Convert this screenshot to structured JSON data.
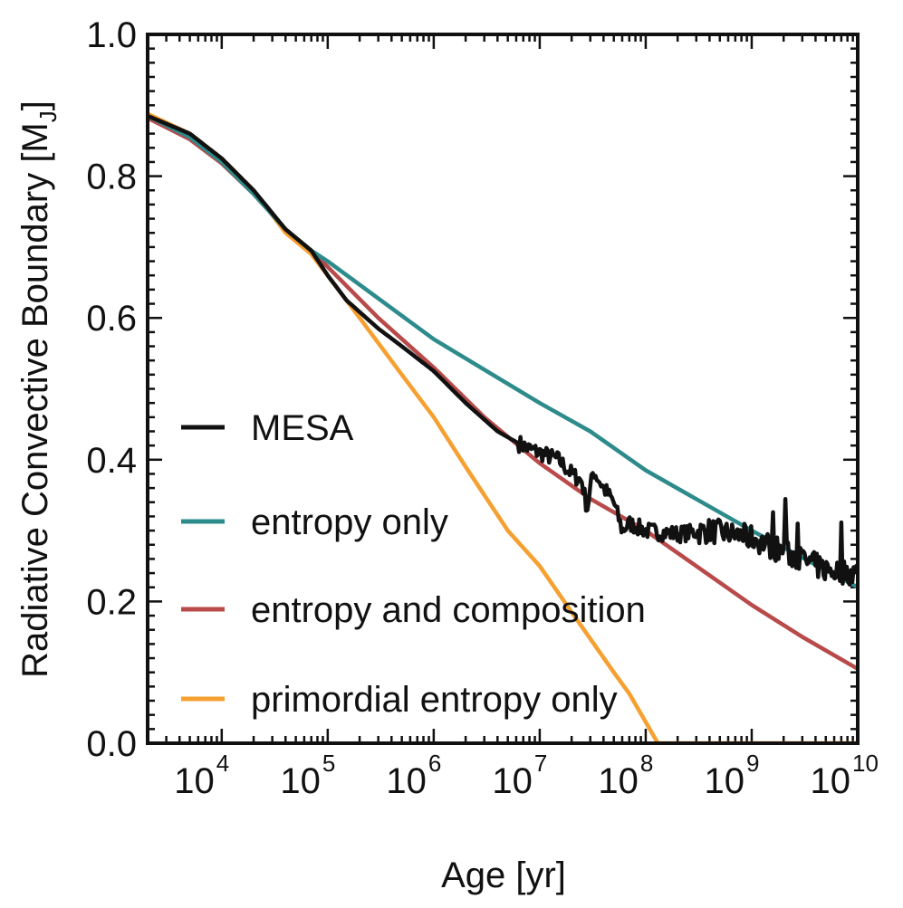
{
  "chart_data": {
    "type": "line",
    "title": "",
    "xlabel": "Age [yr]",
    "ylabel": "Radiative Convective Boundary [M",
    "ylabel_sub": "J",
    "ylabel_close": "]",
    "x_scale": "log",
    "xlim": [
      2000,
      10000000000
    ],
    "ylim": [
      0.0,
      1.0
    ],
    "x_ticks": [
      {
        "value": 10000,
        "base": "10",
        "exp": "4"
      },
      {
        "value": 100000,
        "base": "10",
        "exp": "5"
      },
      {
        "value": 1000000,
        "base": "10",
        "exp": "6"
      },
      {
        "value": 10000000,
        "base": "10",
        "exp": "7"
      },
      {
        "value": 100000000,
        "base": "10",
        "exp": "8"
      },
      {
        "value": 1000000000,
        "base": "10",
        "exp": "9"
      },
      {
        "value": 10000000000,
        "base": "10",
        "exp": "10"
      }
    ],
    "y_ticks": [
      {
        "value": 0.0,
        "label": "0.0"
      },
      {
        "value": 0.2,
        "label": "0.2"
      },
      {
        "value": 0.4,
        "label": "0.4"
      },
      {
        "value": 0.6,
        "label": "0.6"
      },
      {
        "value": 0.8,
        "label": "0.8"
      },
      {
        "value": 1.0,
        "label": "1.0"
      }
    ],
    "grid": false,
    "legend_position": "lower-left",
    "series": [
      {
        "name": "MESA",
        "color": "#111111",
        "noisy": true,
        "x": [
          2000,
          5000,
          10000,
          20000,
          40000,
          70000,
          100000,
          150000,
          300000,
          500000,
          1000000,
          2000000,
          4000000,
          6000000,
          8000000,
          10000000,
          15000000,
          20000000,
          25000000,
          28000000,
          32000000,
          40000000,
          50000000,
          60000000,
          70000000,
          100000000,
          200000000,
          400000000,
          1000000000,
          2000000000,
          5000000000,
          10000000000
        ],
        "y": [
          0.885,
          0.86,
          0.825,
          0.78,
          0.725,
          0.695,
          0.66,
          0.625,
          0.585,
          0.56,
          0.525,
          0.48,
          0.44,
          0.425,
          0.415,
          0.41,
          0.4,
          0.38,
          0.37,
          0.33,
          0.385,
          0.36,
          0.34,
          0.3,
          0.31,
          0.3,
          0.295,
          0.3,
          0.29,
          0.27,
          0.245,
          0.24
        ]
      },
      {
        "name": "entropy only",
        "color": "#2e8b8b",
        "x": [
          2000,
          5000,
          10000,
          20000,
          40000,
          70000,
          100000,
          1000000,
          10000000,
          30000000,
          100000000,
          1000000000,
          10000000000
        ],
        "y": [
          0.885,
          0.855,
          0.82,
          0.775,
          0.725,
          0.695,
          0.68,
          0.57,
          0.48,
          0.44,
          0.385,
          0.3,
          0.22
        ]
      },
      {
        "name": "entropy and composition",
        "color": "#b84a4a",
        "x": [
          2000,
          5000,
          10000,
          20000,
          40000,
          70000,
          100000,
          300000,
          1000000,
          3000000,
          10000000,
          30000000,
          100000000,
          300000000,
          1000000000,
          3000000000,
          10000000000
        ],
        "y": [
          0.882,
          0.852,
          0.818,
          0.775,
          0.725,
          0.695,
          0.672,
          0.6,
          0.53,
          0.46,
          0.395,
          0.345,
          0.3,
          0.25,
          0.195,
          0.15,
          0.105
        ]
      },
      {
        "name": "primordial entropy only",
        "color": "#f5a030",
        "x": [
          2000,
          5000,
          10000,
          20000,
          40000,
          70000,
          100000,
          200000,
          500000,
          1000000,
          2000000,
          5000000,
          10000000,
          20000000,
          50000000,
          70000000,
          100000000,
          130000000,
          10000000000
        ],
        "y": [
          0.888,
          0.86,
          0.825,
          0.78,
          0.72,
          0.69,
          0.66,
          0.6,
          0.52,
          0.46,
          0.39,
          0.3,
          0.25,
          0.185,
          0.1,
          0.07,
          0.03,
          0.0,
          0.0
        ]
      }
    ]
  }
}
